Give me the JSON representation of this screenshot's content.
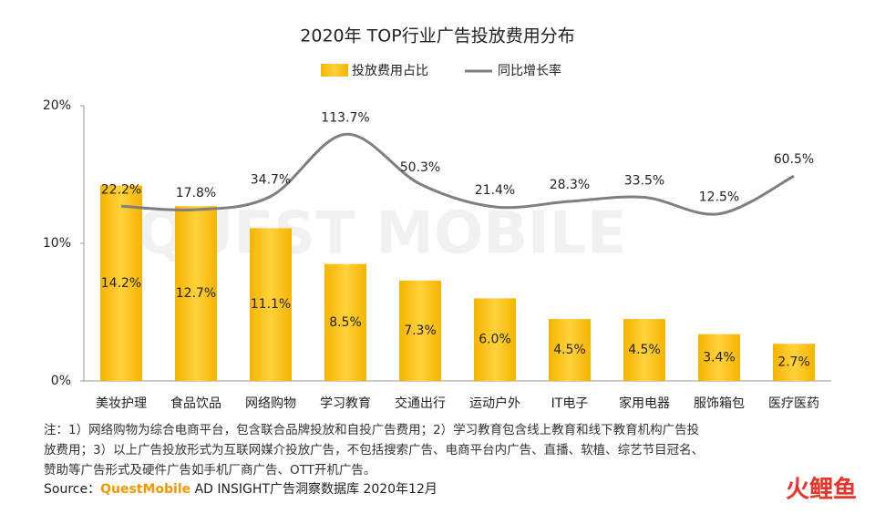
{
  "chart_data": {
    "type": "bar_line",
    "title": "2020年 TOP行业广告投放费用分布",
    "categories": [
      "美妆护理",
      "食品饮品",
      "网络购物",
      "学习教育",
      "交通出行",
      "运动户外",
      "IT电子",
      "家用电器",
      "服饰箱包",
      "医疗医药"
    ],
    "series": [
      {
        "name": "投放费用占比",
        "type": "bar",
        "color": "#f8c11b",
        "values": [
          14.2,
          12.7,
          11.1,
          8.5,
          7.3,
          6.0,
          4.5,
          4.5,
          3.4,
          2.7
        ],
        "value_labels": [
          "14.2%",
          "12.7%",
          "11.1%",
          "8.5%",
          "7.3%",
          "6.0%",
          "4.5%",
          "4.5%",
          "3.4%",
          "2.7%"
        ]
      },
      {
        "name": "同比增长率",
        "type": "line",
        "axis": "y2",
        "color": "#7f7f7f",
        "values": [
          22.2,
          17.8,
          34.7,
          113.7,
          50.3,
          21.4,
          28.3,
          33.5,
          12.5,
          60.5
        ],
        "value_labels": [
          "22.2%",
          "17.8%",
          "34.7%",
          "113.7%",
          "50.3%",
          "21.4%",
          "28.3%",
          "33.5%",
          "12.5%",
          "60.5%"
        ]
      }
    ],
    "ylim": [
      0,
      20
    ],
    "yticks": [
      {
        "value": 0,
        "label": "0%"
      },
      {
        "value": 10,
        "label": "10%"
      },
      {
        "value": 20,
        "label": "20%"
      }
    ],
    "y2lim": [
      -200,
      150
    ],
    "legend": "top",
    "notes": [
      "注：1）网络购物为综合电商平台，包含联合品牌投放和自投广告费用；2）学习教育包含线上教育和线下教育机构广告投",
      "放费用；3）以上广告投放形式为互联网媒介投放广告，不包括搜索广告、电商平台内广告、直播、软植、综艺节目冠名、",
      "赞助等广告形式及硬件广告如手机厂商广告、OTT开机广告。"
    ],
    "source": {
      "prefix": "Source：",
      "brand": "QuestMobile",
      "rest": " AD INSIGHT广告洞察数据库 2020年12月"
    },
    "watermark": "QUEST MOBILE",
    "logo": "火鲤鱼"
  }
}
